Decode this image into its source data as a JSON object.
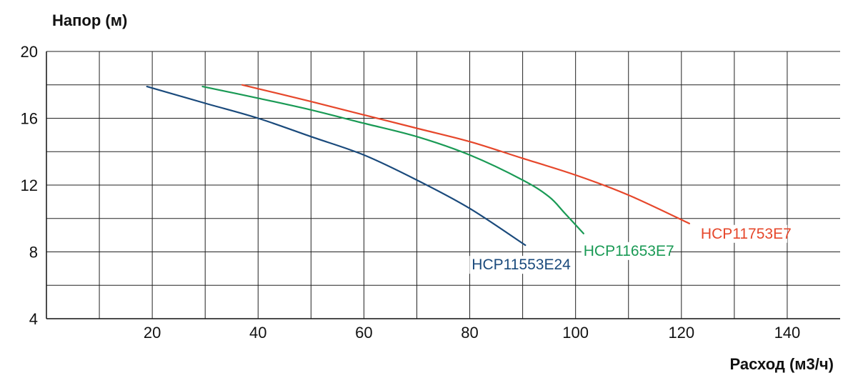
{
  "chart_data": {
    "type": "line",
    "xlabel": "Расход (м3/ч)",
    "ylabel": "Напор (м)",
    "xlim": [
      0,
      150
    ],
    "ylim": [
      4,
      20
    ],
    "x_ticks": [
      20,
      40,
      60,
      80,
      100,
      120,
      140
    ],
    "y_ticks": [
      4,
      8,
      12,
      16,
      20
    ],
    "grid": true,
    "series": [
      {
        "name": "HCP11553E24",
        "color": "#1a4a7c",
        "x": [
          19,
          30,
          40,
          50,
          60,
          70,
          80,
          90.5
        ],
        "y": [
          17.9,
          16.9,
          16.0,
          14.9,
          13.8,
          12.3,
          10.6,
          8.4
        ]
      },
      {
        "name": "HCP11653E7",
        "color": "#1a9a55",
        "x": [
          29.5,
          40,
          50,
          60,
          70,
          80,
          90,
          95,
          98,
          101.5
        ],
        "y": [
          17.9,
          17.2,
          16.5,
          15.7,
          14.9,
          13.8,
          12.3,
          11.3,
          10.3,
          9.1
        ]
      },
      {
        "name": "HCP11753E7",
        "color": "#e6472b",
        "x": [
          37,
          50,
          60,
          70,
          80,
          90,
          100,
          110,
          121.5
        ],
        "y": [
          18.0,
          17.0,
          16.2,
          15.4,
          14.6,
          13.6,
          12.6,
          11.4,
          9.7
        ]
      }
    ]
  }
}
